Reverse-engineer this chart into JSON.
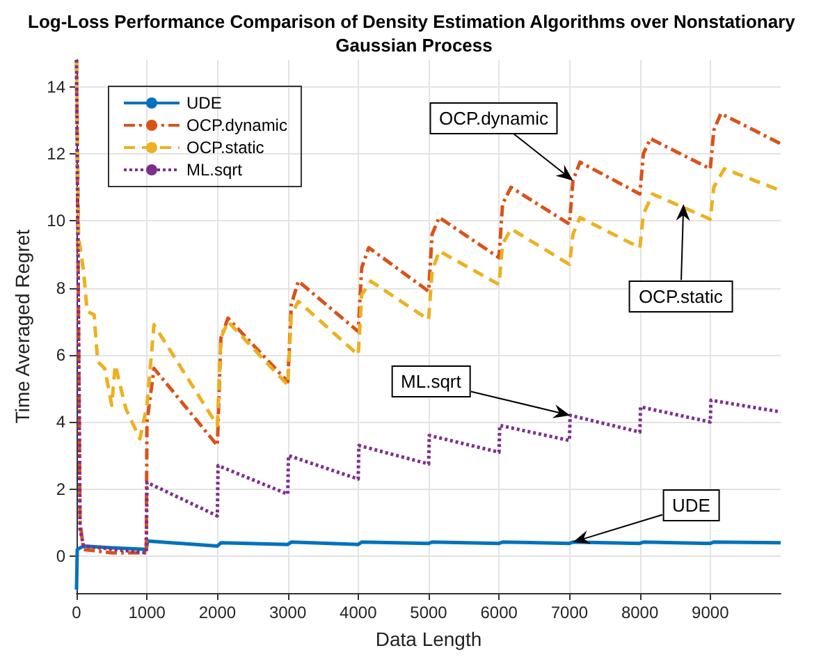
{
  "chart_data": {
    "type": "line",
    "title": "Log-Loss Performance Comparison of Density Estimation Algorithms over Nonstationary Gaussian Process",
    "xlabel": "Data Length",
    "ylabel": "Time Averaged Regret",
    "xlim": [
      0,
      10000
    ],
    "xticks": [
      0,
      1000,
      2000,
      3000,
      4000,
      5000,
      6000,
      7000,
      8000,
      9000
    ],
    "ylim": [
      -1.1,
      14.8
    ],
    "yticks": [
      0,
      2,
      4,
      6,
      8,
      10,
      12,
      14
    ],
    "grid": true,
    "legend": "top left",
    "marker": "none",
    "annotations": [
      {
        "text": "OCP.dynamic",
        "x": 7050,
        "y": 11.2
      },
      {
        "text": "OCP.static",
        "x": 8620,
        "y": 10.5
      },
      {
        "text": "ML.sqrt",
        "x": 7010,
        "y": 4.2
      },
      {
        "text": "UDE",
        "x": 7050,
        "y": 0.42
      }
    ],
    "series": [
      {
        "name": "UDE",
        "color": "#0072bd",
        "line_style": "solid",
        "x": [
          0,
          10,
          100,
          500,
          990,
          1010,
          2000,
          2050,
          3000,
          3050,
          4000,
          4050,
          5000,
          5050,
          6000,
          6050,
          7000,
          7050,
          8000,
          8050,
          9000,
          9050,
          10000
        ],
        "values": [
          -1.0,
          0.2,
          0.3,
          0.25,
          0.2,
          0.45,
          0.3,
          0.4,
          0.35,
          0.42,
          0.35,
          0.42,
          0.38,
          0.42,
          0.38,
          0.42,
          0.38,
          0.42,
          0.38,
          0.42,
          0.38,
          0.42,
          0.4
        ]
      },
      {
        "name": "OCP.dynamic",
        "color": "#d95319",
        "line_style": "dashdot",
        "x": [
          0,
          50,
          100,
          500,
          990,
          1000,
          1100,
          2000,
          2050,
          2150,
          3000,
          3050,
          3150,
          4000,
          4050,
          4150,
          5000,
          5050,
          5150,
          6000,
          6050,
          6170,
          7000,
          7050,
          7150,
          8000,
          8050,
          8150,
          9000,
          9050,
          9150,
          10000
        ],
        "values": [
          14.8,
          1.0,
          0.2,
          0.1,
          0.1,
          4.0,
          5.6,
          3.3,
          6.5,
          7.1,
          5.2,
          7.5,
          8.2,
          6.7,
          8.6,
          9.2,
          7.9,
          9.6,
          10.1,
          8.9,
          10.5,
          11.0,
          9.9,
          11.2,
          11.75,
          10.8,
          12.0,
          12.45,
          11.55,
          12.7,
          13.2,
          12.3
        ]
      },
      {
        "name": "OCP.static",
        "color": "#edb120",
        "line_style": "dashed",
        "x": [
          0,
          30,
          100,
          150,
          250,
          300,
          400,
          500,
          550,
          700,
          900,
          1000,
          1100,
          2000,
          2050,
          2150,
          3000,
          3050,
          3150,
          4000,
          4050,
          4180,
          5000,
          5050,
          5150,
          6000,
          6050,
          6170,
          7000,
          7050,
          7150,
          8000,
          8050,
          8180,
          9000,
          9050,
          9200,
          10000
        ],
        "values": [
          14.8,
          9.5,
          8.5,
          7.3,
          7.2,
          5.8,
          5.6,
          4.5,
          5.7,
          4.4,
          3.5,
          4.5,
          6.9,
          3.9,
          6.5,
          7.0,
          5.1,
          7.2,
          7.6,
          6.0,
          7.8,
          8.2,
          7.05,
          8.5,
          9.1,
          8.1,
          9.3,
          9.76,
          8.7,
          9.6,
          10.1,
          9.2,
          10.2,
          10.8,
          10.05,
          11.0,
          11.55,
          10.9
        ]
      },
      {
        "name": "ML.sqrt",
        "color": "#7e2f8e",
        "line_style": "dotted",
        "x": [
          0,
          50,
          100,
          990,
          1000,
          2000,
          2010,
          3000,
          3010,
          4000,
          4010,
          5000,
          5010,
          6000,
          6010,
          7000,
          7010,
          8000,
          8010,
          9000,
          9010,
          10000
        ],
        "values": [
          14.8,
          0.8,
          0.3,
          0.1,
          2.2,
          1.2,
          2.7,
          1.85,
          3.0,
          2.3,
          3.3,
          2.75,
          3.6,
          3.1,
          3.9,
          3.45,
          4.2,
          3.7,
          4.45,
          4.0,
          4.65,
          4.3
        ]
      }
    ]
  }
}
